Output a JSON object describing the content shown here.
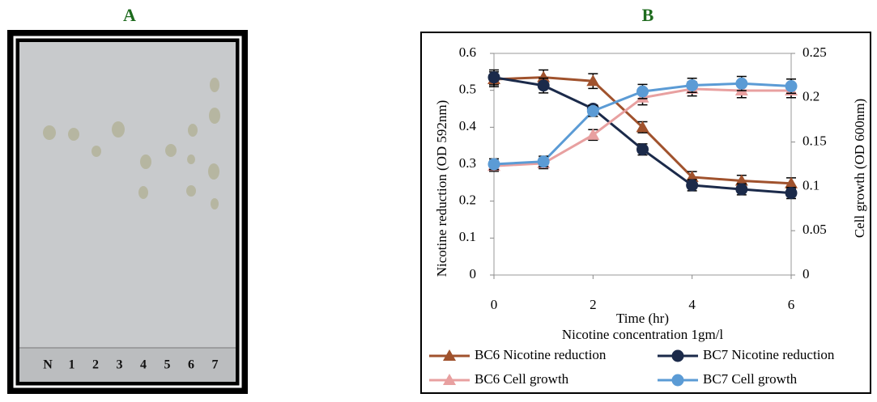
{
  "panel_a": {
    "label": "A",
    "lanes": [
      "N",
      "1",
      "2",
      "3",
      "4",
      "5",
      "6",
      "7"
    ]
  },
  "panel_b": {
    "label": "B"
  },
  "chart_data": {
    "type": "line",
    "xlabel": "Time (hr)",
    "subtitle": "Nicotine concentration 1gm/l",
    "ylabel": "Nicotine  reduction (OD 592nm)",
    "y2label": "Cell growth (OD 600nm)",
    "x": [
      0,
      1,
      2,
      3,
      4,
      5,
      6
    ],
    "xlim": [
      0,
      6
    ],
    "xticks": [
      0,
      2,
      4,
      6
    ],
    "ylim": [
      0,
      0.6
    ],
    "yticks": [
      0,
      0.1,
      0.2,
      0.3,
      0.4,
      0.5,
      0.6
    ],
    "y2lim": [
      0,
      0.25
    ],
    "y2ticks": [
      0,
      0.05,
      0.1,
      0.15,
      0.2,
      0.25
    ],
    "legend": "bottom",
    "series": [
      {
        "name": "BC6 Nicotine reduction",
        "color": "#a0522d",
        "marker": "triangle",
        "values": [
          0.53,
          0.535,
          0.525,
          0.4,
          0.265,
          0.255,
          0.248
        ],
        "errors": [
          0.02,
          0.02,
          0.02,
          0.015,
          0.015,
          0.015,
          0.015
        ]
      },
      {
        "name": "BC7 Nicotine reduction",
        "color": "#1b2a4a",
        "marker": "circle",
        "values": [
          0.535,
          0.513,
          0.45,
          0.34,
          0.243,
          0.232,
          0.222
        ],
        "errors": [
          0.02,
          0.02,
          0.01,
          0.015,
          0.015,
          0.015,
          0.015
        ]
      },
      {
        "name": "BC6 Cell growth",
        "color": "#e8a0a0",
        "marker": "triangle",
        "axis": "y2",
        "values": [
          0.123,
          0.126,
          0.158,
          0.2,
          0.21,
          0.208,
          0.208
        ],
        "errors": [
          0.006,
          0.006,
          0.006,
          0.008,
          0.008,
          0.008,
          0.008
        ]
      },
      {
        "name": "BC7 Cell growth",
        "color": "#5b9bd5",
        "marker": "circle",
        "axis": "y2",
        "values": [
          0.125,
          0.128,
          0.185,
          0.207,
          0.214,
          0.216,
          0.213
        ],
        "errors": [
          0.006,
          0.006,
          0.006,
          0.008,
          0.008,
          0.008,
          0.008
        ]
      }
    ]
  }
}
